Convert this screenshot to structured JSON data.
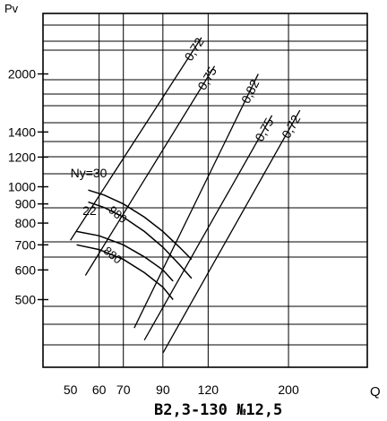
{
  "colors": {
    "ink": "#000000",
    "background": "#ffffff"
  },
  "chart_data": {
    "type": "line",
    "title": "",
    "caption": "В2,3-130 №12,5",
    "xlabel": "Q",
    "ylabel": "Pv",
    "xscale": "log",
    "yscale": "log",
    "grid": true,
    "xticks": [
      50,
      60,
      70,
      90,
      120,
      200
    ],
    "yticks": [
      500,
      600,
      700,
      800,
      900,
      1000,
      1200,
      1400,
      2000
    ],
    "xlim": [
      42,
      330
    ],
    "ylim": [
      330,
      2900
    ],
    "speed_curves": [
      {
        "rpm": "980",
        "bands": [
          [
            [
              56,
              980
            ],
            [
              62,
              950
            ],
            [
              70,
              900
            ],
            [
              80,
              830
            ],
            [
              90,
              760
            ],
            [
              100,
              690
            ],
            [
              108,
              640
            ]
          ],
          [
            [
              56,
              910
            ],
            [
              62,
              880
            ],
            [
              70,
              830
            ],
            [
              80,
              760
            ],
            [
              90,
              690
            ],
            [
              100,
              620
            ],
            [
              108,
              570
            ]
          ]
        ]
      },
      {
        "rpm": "880",
        "bands": [
          [
            [
              52,
              760
            ],
            [
              60,
              740
            ],
            [
              70,
              700
            ],
            [
              80,
              650
            ],
            [
              90,
              600
            ],
            [
              96,
              560
            ]
          ],
          [
            [
              52,
              700
            ],
            [
              60,
              680
            ],
            [
              70,
              640
            ],
            [
              80,
              590
            ],
            [
              90,
              540
            ],
            [
              96,
              500
            ]
          ]
        ]
      }
    ],
    "efficiency_lines": [
      {
        "label": "0,72",
        "points": [
          [
            50,
            720
          ],
          [
            115,
            2500
          ]
        ]
      },
      {
        "label": "0,75",
        "points": [
          [
            55,
            580
          ],
          [
            125,
            2100
          ]
        ]
      },
      {
        "label": "0,82",
        "points": [
          [
            75,
            420
          ],
          [
            165,
            2000
          ]
        ]
      },
      {
        "label": "0,75",
        "points": [
          [
            80,
            390
          ],
          [
            180,
            1550
          ]
        ]
      },
      {
        "label": "0,72",
        "points": [
          [
            90,
            360
          ],
          [
            215,
            1600
          ]
        ]
      }
    ],
    "power_labels": [
      {
        "text": "Ny=30",
        "at": [
          50,
          1060
        ]
      },
      {
        "text": "22",
        "at": [
          54,
          840
        ]
      }
    ]
  }
}
